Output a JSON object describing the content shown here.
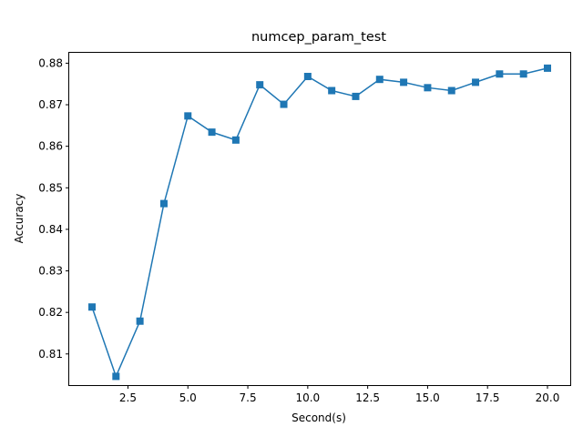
{
  "chart_data": {
    "type": "line",
    "title": "numcep_param_test",
    "xlabel": "Second(s)",
    "ylabel": "Accuracy",
    "xlim": [
      0.05,
      20.95
    ],
    "ylim": [
      0.8025,
      0.8825
    ],
    "xticks": [
      2.5,
      5.0,
      7.5,
      10.0,
      12.5,
      15.0,
      17.5,
      20.0
    ],
    "xtick_labels": [
      "2.5",
      "5.0",
      "7.5",
      "10.0",
      "12.5",
      "15.0",
      "17.5",
      "20.0"
    ],
    "yticks": [
      0.81,
      0.82,
      0.83,
      0.84,
      0.85,
      0.86,
      0.87,
      0.88
    ],
    "ytick_labels": [
      "0.81",
      "0.82",
      "0.83",
      "0.84",
      "0.85",
      "0.86",
      "0.87",
      "0.88"
    ],
    "grid": false,
    "series": [
      {
        "color": "#1f77b4",
        "marker": "square",
        "x": [
          1,
          2,
          3,
          4,
          5,
          6,
          7,
          8,
          9,
          10,
          11,
          12,
          13,
          14,
          15,
          16,
          17,
          18,
          19,
          20
        ],
        "y": [
          0.8213,
          0.8046,
          0.8179,
          0.8462,
          0.8673,
          0.8634,
          0.8615,
          0.8748,
          0.8701,
          0.8768,
          0.8734,
          0.872,
          0.8761,
          0.8754,
          0.8741,
          0.8734,
          0.8754,
          0.8774,
          0.8774,
          0.8788
        ]
      }
    ]
  }
}
